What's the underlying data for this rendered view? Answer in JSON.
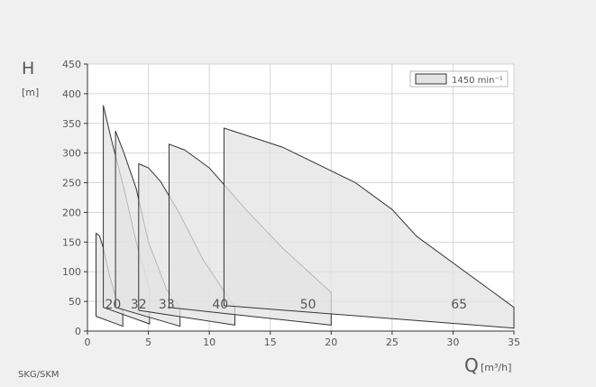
{
  "chart_data": {
    "type": "area",
    "xlabel_symbol": "Q",
    "xlabel_unit": "[m³/h]",
    "ylabel_symbol": "H",
    "ylabel_unit": "[m]",
    "xlim": [
      0,
      35
    ],
    "ylim": [
      0,
      450
    ],
    "xticks": [
      0,
      5,
      10,
      15,
      20,
      25,
      30,
      35
    ],
    "yticks": [
      0,
      50,
      100,
      150,
      200,
      250,
      300,
      350,
      400,
      450
    ],
    "grid": true,
    "legend": {
      "label": "1450 min⁻¹",
      "placement": "top-right"
    },
    "colors": {
      "fill": "#e3e3e3",
      "stroke": "#333333",
      "grid": "#d6d6d6",
      "background": "#ffffff"
    },
    "series": [
      {
        "name": "20",
        "label_pos": [
          2.1,
          47
        ],
        "polygon": [
          [
            0.7,
            25
          ],
          [
            0.7,
            165
          ],
          [
            1.0,
            160
          ],
          [
            1.3,
            140
          ],
          [
            1.8,
            95
          ],
          [
            2.3,
            58
          ],
          [
            2.9,
            35
          ],
          [
            2.9,
            8
          ],
          [
            0.7,
            25
          ]
        ]
      },
      {
        "name": "32",
        "label_pos": [
          4.2,
          47
        ],
        "polygon": [
          [
            1.3,
            40
          ],
          [
            1.3,
            380
          ],
          [
            2.0,
            320
          ],
          [
            3.0,
            240
          ],
          [
            4.0,
            150
          ],
          [
            5.1,
            70
          ],
          [
            5.1,
            12
          ],
          [
            1.3,
            40
          ]
        ]
      },
      {
        "name": "33",
        "label_pos": [
          6.5,
          47
        ],
        "polygon": [
          [
            2.3,
            40
          ],
          [
            2.3,
            337
          ],
          [
            3.0,
            300
          ],
          [
            4.0,
            240
          ],
          [
            5.0,
            150
          ],
          [
            6.5,
            70
          ],
          [
            7.6,
            40
          ],
          [
            7.6,
            8
          ],
          [
            2.3,
            40
          ]
        ]
      },
      {
        "name": "40",
        "label_pos": [
          10.9,
          47
        ],
        "polygon": [
          [
            4.2,
            35
          ],
          [
            4.2,
            282
          ],
          [
            5.0,
            275
          ],
          [
            6.0,
            252
          ],
          [
            7.5,
            200
          ],
          [
            9.5,
            120
          ],
          [
            12.1,
            40
          ],
          [
            12.1,
            10
          ],
          [
            4.2,
            35
          ]
        ]
      },
      {
        "name": "50",
        "label_pos": [
          18.1,
          47
        ],
        "polygon": [
          [
            6.7,
            40
          ],
          [
            6.7,
            315
          ],
          [
            8.0,
            305
          ],
          [
            10.0,
            275
          ],
          [
            13.0,
            205
          ],
          [
            16.0,
            140
          ],
          [
            20.0,
            65
          ],
          [
            20.0,
            10
          ],
          [
            6.7,
            40
          ]
        ]
      },
      {
        "name": "65",
        "label_pos": [
          30.5,
          47
        ],
        "polygon": [
          [
            11.2,
            43
          ],
          [
            11.2,
            342
          ],
          [
            13.0,
            330
          ],
          [
            16.0,
            310
          ],
          [
            19.0,
            280
          ],
          [
            22.0,
            250
          ],
          [
            25.0,
            205
          ],
          [
            27.0,
            160
          ],
          [
            30.0,
            115
          ],
          [
            33.0,
            70
          ],
          [
            35.0,
            40
          ],
          [
            35.0,
            5
          ],
          [
            11.2,
            43
          ]
        ]
      }
    ]
  },
  "footer": {
    "model": "SKG/SKM"
  }
}
